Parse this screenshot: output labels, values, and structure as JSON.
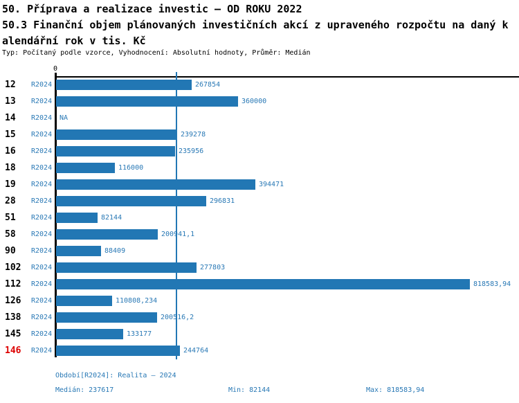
{
  "header": {
    "title_line1": "50. Příprava a realizace investic – OD ROKU 2022",
    "title_line2": "50.3 Finanční objem plánovaných investičních akcí z upraveného rozpočtu na daný k",
    "title_line3": "alendářní rok v tis. Kč",
    "meta": "Typ: Počítaný podle vzorce, Vyhodnocení: Absolutní hodnoty, Průměr: Medián"
  },
  "chart_data": {
    "type": "bar",
    "orientation": "horizontal",
    "title": "50.3 Finanční objem plánovaných investičních akcí z upraveného rozpočtu na daný kalendářní rok v tis. Kč",
    "unit": "tis. Kč",
    "x_axis": {
      "zero_label": "0",
      "min": 0
    },
    "series_name": "R2024",
    "categories": [
      "12",
      "13",
      "14",
      "15",
      "16",
      "18",
      "19",
      "28",
      "51",
      "58",
      "90",
      "102",
      "112",
      "126",
      "138",
      "145",
      "146"
    ],
    "rows": [
      {
        "id": "12",
        "period": "R2024",
        "value": 267854,
        "value_label": "267854",
        "highlight": false
      },
      {
        "id": "13",
        "period": "R2024",
        "value": 360000,
        "value_label": "360000",
        "highlight": false
      },
      {
        "id": "14",
        "period": "R2024",
        "value": null,
        "value_label": "NA",
        "highlight": false
      },
      {
        "id": "15",
        "period": "R2024",
        "value": 239278,
        "value_label": "239278",
        "highlight": false
      },
      {
        "id": "16",
        "period": "R2024",
        "value": 235956,
        "value_label": "235956",
        "highlight": false
      },
      {
        "id": "18",
        "period": "R2024",
        "value": 116000,
        "value_label": "116000",
        "highlight": false
      },
      {
        "id": "19",
        "period": "R2024",
        "value": 394471,
        "value_label": "394471",
        "highlight": false
      },
      {
        "id": "28",
        "period": "R2024",
        "value": 296831,
        "value_label": "296831",
        "highlight": false
      },
      {
        "id": "51",
        "period": "R2024",
        "value": 82144,
        "value_label": "82144",
        "highlight": false
      },
      {
        "id": "58",
        "period": "R2024",
        "value": 200941.1,
        "value_label": "200941,1",
        "highlight": false
      },
      {
        "id": "90",
        "period": "R2024",
        "value": 88409,
        "value_label": "88409",
        "highlight": false
      },
      {
        "id": "102",
        "period": "R2024",
        "value": 277803,
        "value_label": "277803",
        "highlight": false
      },
      {
        "id": "112",
        "period": "R2024",
        "value": 818583.94,
        "value_label": "818583,94",
        "highlight": false
      },
      {
        "id": "126",
        "period": "R2024",
        "value": 110808.234,
        "value_label": "110808,234",
        "highlight": false
      },
      {
        "id": "138",
        "period": "R2024",
        "value": 200516.2,
        "value_label": "200516,2",
        "highlight": false
      },
      {
        "id": "145",
        "period": "R2024",
        "value": 133177,
        "value_label": "133177",
        "highlight": false
      },
      {
        "id": "146",
        "period": "R2024",
        "value": 244764,
        "value_label": "244764",
        "highlight": true
      }
    ],
    "median_value": 237617,
    "stats": {
      "median": 237617,
      "min": 82144,
      "max": 818583.94
    },
    "legend": "none",
    "grid": "off"
  },
  "footer": {
    "period_info": "Období[R2024]: Realita – 2024",
    "median_label": "Medián: 237617",
    "min_label": "Min: 82144",
    "max_label": "Max: 818583,94"
  },
  "colors": {
    "bar_blue": "#2277b4",
    "text_blue": "#2878b5",
    "highlight_red": "#dd0000",
    "axis_black": "#000000"
  }
}
